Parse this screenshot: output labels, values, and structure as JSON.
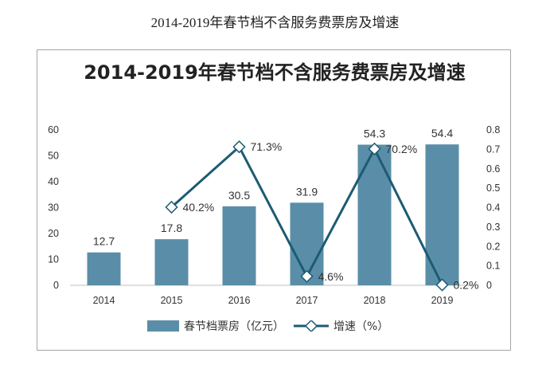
{
  "page_caption": "2014-2019年春节档不含服务费票房及增速",
  "colors": {
    "bar": "#5a8ea8",
    "line": "#1c5b73",
    "marker_fill": "#ffffff"
  },
  "chart_data": {
    "type": "bar",
    "title": "2014-2019年春节档不含服务费票房及增速",
    "categories": [
      "2014",
      "2015",
      "2016",
      "2017",
      "2018",
      "2019"
    ],
    "series": [
      {
        "name": "春节档票房（亿元）",
        "type": "bar",
        "axis": "left",
        "values": [
          12.7,
          17.8,
          30.5,
          31.9,
          54.3,
          54.4
        ],
        "labels": [
          "12.7",
          "17.8",
          "30.5",
          "31.9",
          "54.3",
          "54.4"
        ]
      },
      {
        "name": "增速（%）",
        "type": "line",
        "axis": "right",
        "values": [
          null,
          0.402,
          0.713,
          0.046,
          0.702,
          0.002
        ],
        "labels": [
          "",
          "40.2%",
          "71.3%",
          "4.6%",
          "70.2%",
          "0.2%"
        ]
      }
    ],
    "ylim_left": [
      0,
      60
    ],
    "yticks_left": [
      "0",
      "10",
      "20",
      "30",
      "40",
      "50",
      "60"
    ],
    "ylim_right": [
      0,
      0.8
    ],
    "yticks_right": [
      "0",
      "0.1",
      "0.2",
      "0.3",
      "0.4",
      "0.5",
      "0.6",
      "0.7",
      "0.8"
    ],
    "legend_position": "bottom",
    "grid": false
  }
}
